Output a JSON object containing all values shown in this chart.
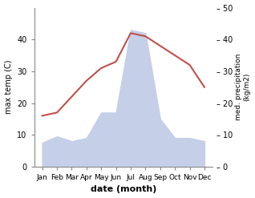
{
  "months": [
    "Jan",
    "Feb",
    "Mar",
    "Apr",
    "May",
    "Jun",
    "Jul",
    "Aug",
    "Sep",
    "Oct",
    "Nov",
    "Dec"
  ],
  "max_temp": [
    16,
    17,
    22,
    27,
    31,
    33,
    42,
    41,
    38,
    35,
    32,
    25
  ],
  "precipitation": [
    7.5,
    9.5,
    8,
    9,
    17,
    17,
    43,
    42,
    15,
    9,
    9,
    8
  ],
  "temp_color": "#c0504d",
  "precip_fill_color": "#c5cfe8",
  "ylabel_left": "max temp (C)",
  "ylabel_right": "med. precipitation\n(kg/m2)",
  "xlabel": "date (month)",
  "ylim_left": [
    0,
    50
  ],
  "ylim_right": [
    0,
    50
  ],
  "yticks_left": [
    0,
    10,
    20,
    30,
    40
  ],
  "yticks_right": [
    0,
    10,
    20,
    30,
    40,
    50
  ],
  "background_color": "#ffffff"
}
